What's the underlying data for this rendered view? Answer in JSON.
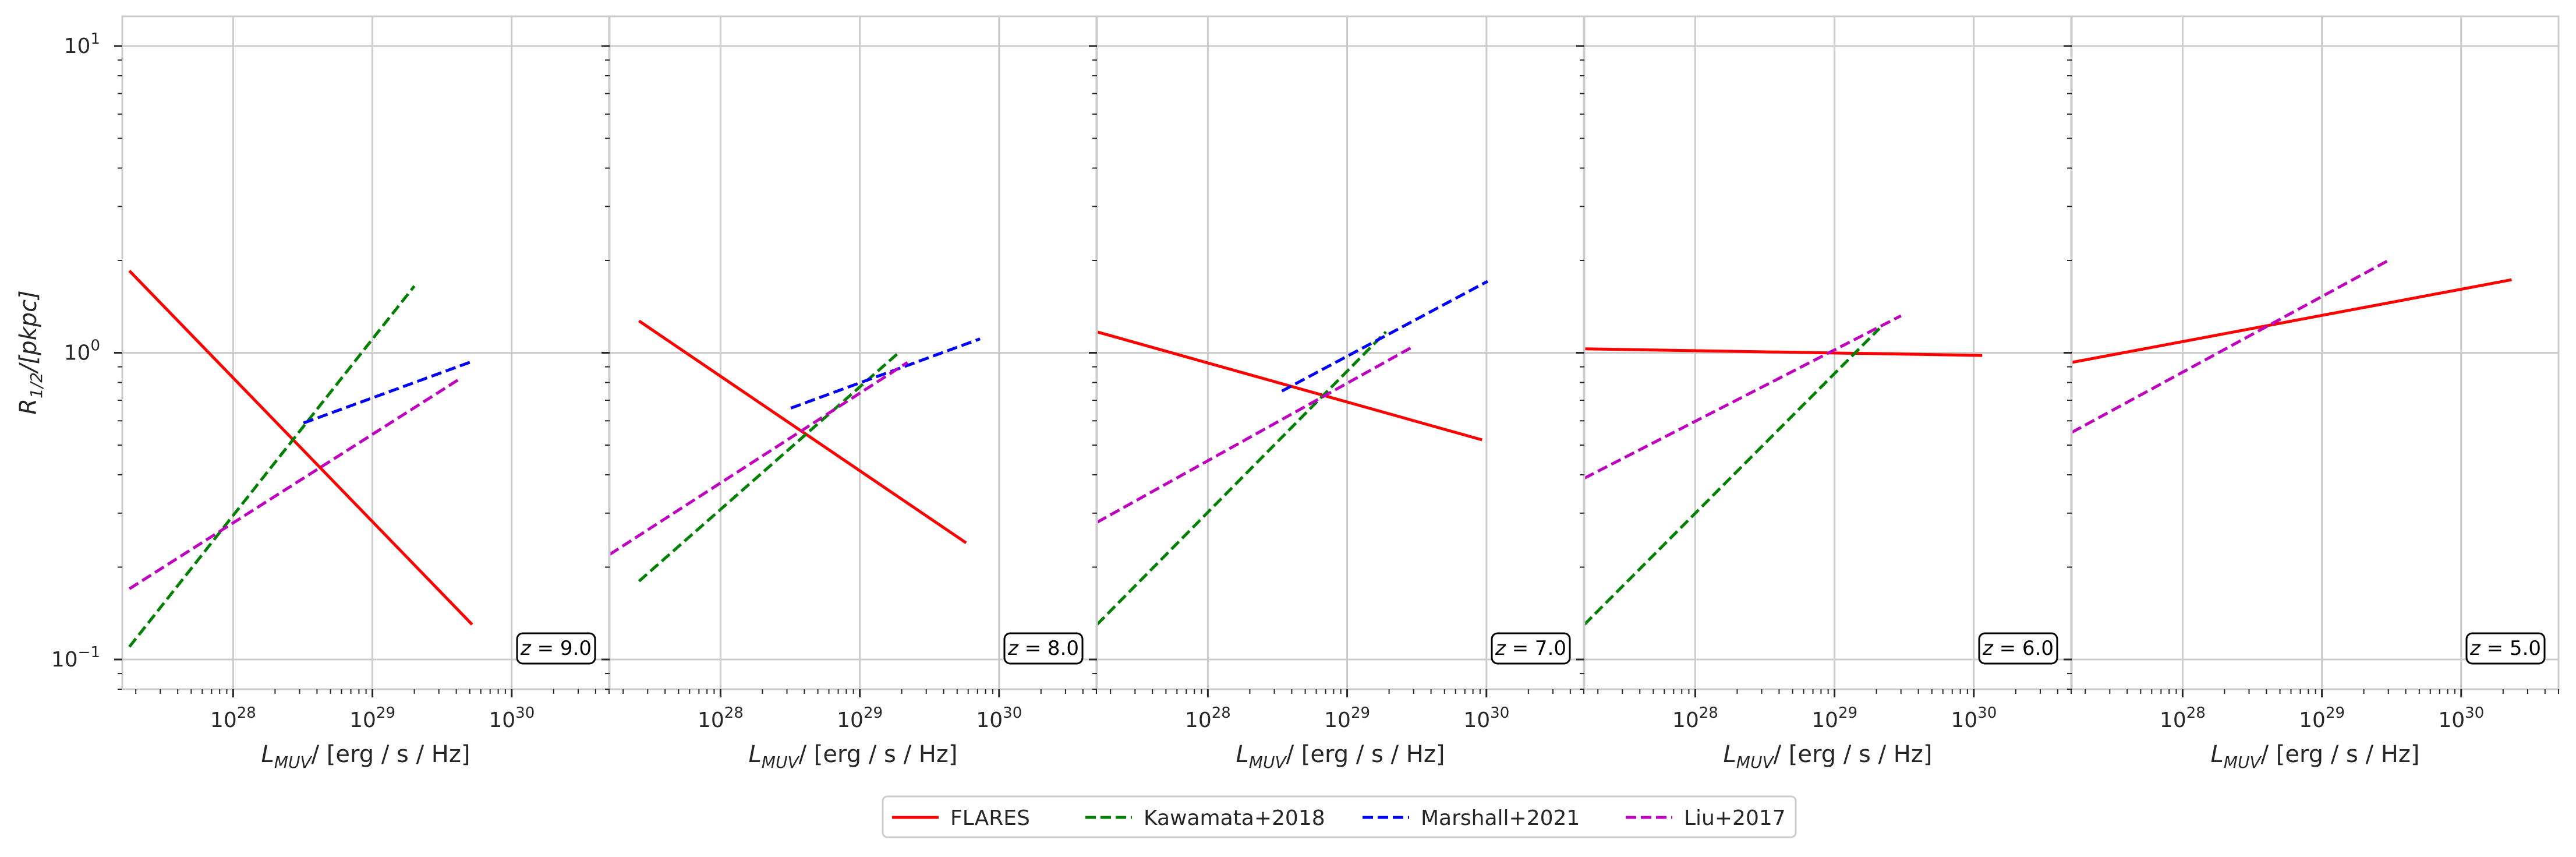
{
  "chart_data": {
    "type": "line",
    "xscale": "log",
    "yscale": "log",
    "grid": true,
    "legend_placement": "bottom-center",
    "shared_y": true,
    "ylabel_main": "R",
    "ylabel_sub": "1/2",
    "ylabel_rest": "/[pkpc]",
    "xlabel_main": "L",
    "xlabel_sub": "MUV",
    "xlabel_rest": "/ [erg / s / Hz]",
    "xlim": [
      1.6e+27,
      5e+30
    ],
    "ylim": [
      0.08,
      12.5
    ],
    "xtick_labels": [
      {
        "base": "10",
        "exp": "28"
      },
      {
        "base": "10",
        "exp": "29"
      },
      {
        "base": "10",
        "exp": "30"
      }
    ],
    "ytick_labels": [
      {
        "base": "10",
        "exp": "−1"
      },
      {
        "base": "10",
        "exp": "0"
      },
      {
        "base": "10",
        "exp": "1"
      }
    ],
    "legend": [
      {
        "name": "FLARES",
        "color": "#ff0000",
        "dashed": false
      },
      {
        "name": "Kawamata+2018",
        "color": "#008000",
        "dashed": true
      },
      {
        "name": "Marshall+2021",
        "color": "#0000ff",
        "dashed": true
      },
      {
        "name": "Liu+2017",
        "color": "#bf00bf",
        "dashed": true
      }
    ],
    "panels": [
      {
        "z_label": "z = 9.0",
        "series": [
          {
            "name": "FLARES",
            "x": [
              1.8e+27,
              5.2e+29
            ],
            "y": [
              1.85,
              0.13
            ]
          },
          {
            "name": "Kawamata+2018",
            "x": [
              1.8e+27,
              2e+29
            ],
            "y": [
              0.11,
              1.65
            ]
          },
          {
            "name": "Marshall+2021",
            "x": [
              3.2e+28,
              5.3e+29
            ],
            "y": [
              0.59,
              0.94
            ]
          },
          {
            "name": "Liu+2017",
            "x": [
              1.8e+27,
              4.2e+29
            ],
            "y": [
              0.17,
              0.82
            ]
          }
        ]
      },
      {
        "z_label": "z = 8.0",
        "series": [
          {
            "name": "FLARES",
            "x": [
              2.6e+27,
              5.8e+29
            ],
            "y": [
              1.27,
              0.24
            ]
          },
          {
            "name": "Kawamata+2018",
            "x": [
              2.6e+27,
              1.9e+29
            ],
            "y": [
              0.18,
              1.0
            ]
          },
          {
            "name": "Marshall+2021",
            "x": [
              3.2e+28,
              7.3e+29
            ],
            "y": [
              0.66,
              1.11
            ]
          },
          {
            "name": "Liu+2017",
            "x": [
              1.6e+27,
              2.2e+29
            ],
            "y": [
              0.22,
              0.93
            ]
          }
        ]
      },
      {
        "z_label": "z = 7.0",
        "series": [
          {
            "name": "FLARES",
            "x": [
              1.6e+27,
              9.3e+29
            ],
            "y": [
              1.17,
              0.52
            ]
          },
          {
            "name": "Kawamata+2018",
            "x": [
              1.6e+27,
              1.9e+29
            ],
            "y": [
              0.13,
              1.17
            ]
          },
          {
            "name": "Marshall+2021",
            "x": [
              3.4e+28,
              1.02e+30
            ],
            "y": [
              0.75,
              1.71
            ]
          },
          {
            "name": "Liu+2017",
            "x": [
              1.6e+27,
              3e+29
            ],
            "y": [
              0.28,
              1.05
            ]
          }
        ]
      },
      {
        "z_label": "z = 6.0",
        "series": [
          {
            "name": "FLARES",
            "x": [
              1.6e+27,
              1.15e+30
            ],
            "y": [
              1.03,
              0.98
            ]
          },
          {
            "name": "Kawamata+2018",
            "x": [
              1.6e+27,
              2.1e+29
            ],
            "y": [
              0.13,
              1.2
            ]
          },
          {
            "name": "Liu+2017",
            "x": [
              1.6e+27,
              3e+29
            ],
            "y": [
              0.39,
              1.32
            ]
          }
        ]
      },
      {
        "z_label": "z = 5.0",
        "series": [
          {
            "name": "FLARES",
            "x": [
              1.6e+27,
              2.3e+30
            ],
            "y": [
              0.93,
              1.73
            ]
          },
          {
            "name": "Liu+2017",
            "x": [
              1.6e+27,
              3e+29
            ],
            "y": [
              0.55,
              2.0
            ]
          }
        ]
      }
    ]
  }
}
